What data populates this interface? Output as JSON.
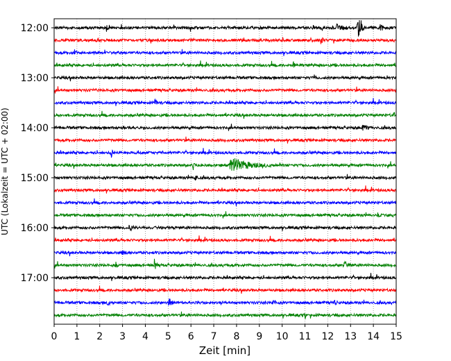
{
  "chart_data": {
    "type": "line",
    "subtype": "helicorder",
    "title": "",
    "xlabel": "Zeit  [min]",
    "ylabel": "UTC (Lokalzeit = UTC + 02:00)",
    "xlim": [
      0,
      15
    ],
    "x_ticks": [
      0,
      1,
      2,
      3,
      4,
      5,
      6,
      7,
      8,
      9,
      10,
      11,
      12,
      13,
      14,
      15
    ],
    "x_grid": true,
    "trace_interval_min": 15,
    "traces_start": "12:00",
    "y_tick_labels": [
      "12:00",
      "13:00",
      "14:00",
      "15:00",
      "16:00",
      "17:00"
    ],
    "trace_colors": [
      "#000000",
      "#ff0000",
      "#0000ff",
      "#008000"
    ],
    "trace_count": 24,
    "events": [
      {
        "trace": 0,
        "x": 13.3,
        "amp": 1.1,
        "len": 0.35
      },
      {
        "trace": 0,
        "x": 12.4,
        "amp": 0.35,
        "len": 0.6
      },
      {
        "trace": 0,
        "x": 14.3,
        "amp": 0.4,
        "len": 0.45
      },
      {
        "trace": 0,
        "x": 2.3,
        "amp": 0.45,
        "len": 0.12
      },
      {
        "trace": 1,
        "x": 6.0,
        "amp": 0.5,
        "len": 0.15
      },
      {
        "trace": 1,
        "x": 10.0,
        "amp": 0.35,
        "len": 0.15
      },
      {
        "trace": 1,
        "x": 11.7,
        "amp": 0.35,
        "len": 0.15
      },
      {
        "trace": 2,
        "x": 0.9,
        "amp": 0.3,
        "len": 0.15
      },
      {
        "trace": 3,
        "x": 10.5,
        "amp": 0.35,
        "len": 0.1
      },
      {
        "trace": 4,
        "x": 11.4,
        "amp": 0.35,
        "len": 0.1
      },
      {
        "trace": 4,
        "x": 14.6,
        "amp": 0.35,
        "len": 0.1
      },
      {
        "trace": 5,
        "x": 1.7,
        "amp": 0.25,
        "len": 0.15
      },
      {
        "trace": 6,
        "x": 4.4,
        "amp": 0.3,
        "len": 0.2
      },
      {
        "trace": 7,
        "x": 14.9,
        "amp": 0.3,
        "len": 0.12
      },
      {
        "trace": 8,
        "x": 13.5,
        "amp": 0.35,
        "len": 0.4
      },
      {
        "trace": 8,
        "x": 3.0,
        "amp": 0.25,
        "len": 0.1
      },
      {
        "trace": 10,
        "x": 2.5,
        "amp": 0.75,
        "len": 0.1
      },
      {
        "trace": 11,
        "x": 6.1,
        "amp": 0.45,
        "len": 0.15
      },
      {
        "trace": 11,
        "x": 7.7,
        "amp": 0.7,
        "len": 1.8
      },
      {
        "trace": 12,
        "x": 6.2,
        "amp": 0.4,
        "len": 0.1
      },
      {
        "trace": 15,
        "x": 14.2,
        "amp": 0.3,
        "len": 0.1
      },
      {
        "trace": 16,
        "x": 3.3,
        "amp": 0.35,
        "len": 0.25
      },
      {
        "trace": 18,
        "x": 3.0,
        "amp": 0.45,
        "len": 0.2
      },
      {
        "trace": 19,
        "x": 4.4,
        "amp": 0.8,
        "len": 0.15
      },
      {
        "trace": 19,
        "x": 12.7,
        "amp": 0.6,
        "len": 0.35
      },
      {
        "trace": 19,
        "x": 2.7,
        "amp": 0.35,
        "len": 0.1
      },
      {
        "trace": 22,
        "x": 5.0,
        "amp": 0.45,
        "len": 0.35
      },
      {
        "trace": 22,
        "x": 2.3,
        "amp": 0.3,
        "len": 0.3
      },
      {
        "trace": 22,
        "x": 9.6,
        "amp": 0.35,
        "len": 0.1
      },
      {
        "trace": 22,
        "x": 12.3,
        "amp": 0.3,
        "len": 0.1
      },
      {
        "trace": 23,
        "x": 11.0,
        "amp": 0.3,
        "len": 0.1
      }
    ]
  }
}
